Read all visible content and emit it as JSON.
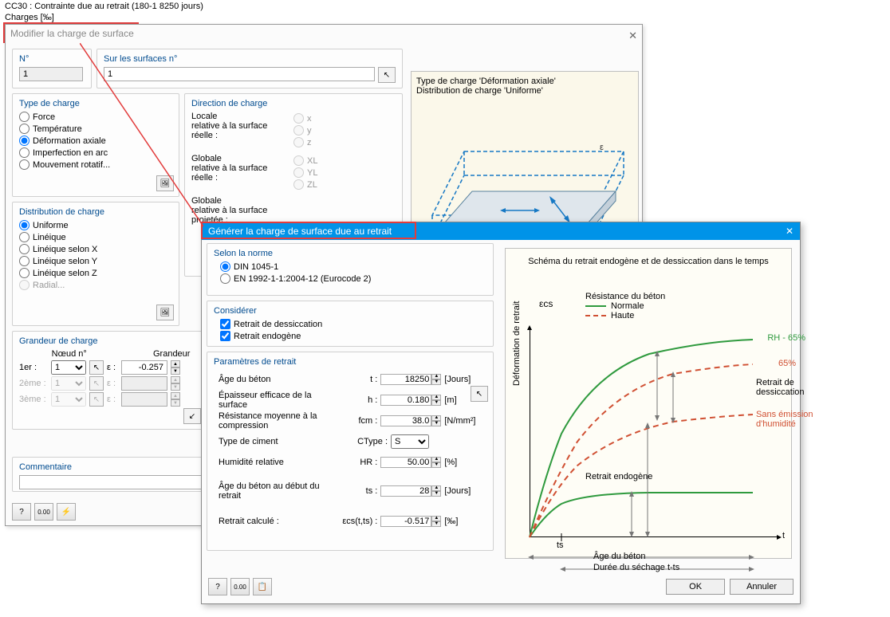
{
  "header": {
    "line1": "CC30 : Contrainte due au retrait (180-1 8250 jours)",
    "line2": "Charges [‰]"
  },
  "main_dialog": {
    "title": "Modifier la charge de surface",
    "close_icon": "✕",
    "no_label": "N°",
    "no_value": "1",
    "surf_label": "Sur les surfaces n°",
    "surf_value": "1"
  },
  "type_charge": {
    "title": "Type de charge",
    "options": [
      "Force",
      "Température",
      "Déformation axiale",
      "Imperfection en arc",
      "Mouvement rotatif..."
    ],
    "selected": "Déformation axiale"
  },
  "direction": {
    "title": "Direction de charge",
    "local_label": "Locale\nrelative à la surface\nréelle :",
    "local_opts": [
      "x",
      "y",
      "z"
    ],
    "global_real_label": "Globale\nrelative à la surface\nréelle :",
    "global_real_opts": [
      "XL",
      "YL",
      "ZL"
    ],
    "global_proj_label": "Globale\nrelative à la surface\nprojetée :"
  },
  "distribution": {
    "title": "Distribution de charge",
    "options": [
      "Uniforme",
      "Linéique",
      "Linéique selon X",
      "Linéique selon Y",
      "Linéique selon Z",
      "Radial..."
    ],
    "selected": "Uniforme"
  },
  "grandeur": {
    "title": "Grandeur de charge",
    "node_label": "Nœud n°",
    "mag_label": "Grandeur",
    "rows": [
      {
        "label": "1er :",
        "node": "1",
        "value": "-0.257"
      },
      {
        "label": "2ème :",
        "node": "1",
        "value": ""
      },
      {
        "label": "3ème :",
        "node": "1",
        "value": ""
      }
    ],
    "eps_symbol": "ε :"
  },
  "comment": {
    "title": "Commentaire",
    "value": ""
  },
  "preview": {
    "line1": "Type de charge 'Déformation axiale'",
    "line2": "Distribution de charge 'Uniforme'",
    "eps": "ε",
    "slab_border": "#1678c4",
    "dash_border": "#1678c4",
    "face_color": "#dfe6ec"
  },
  "sub_dialog": {
    "title": "Générer la charge de surface due au retrait",
    "norme": {
      "title": "Selon la norme",
      "opts": [
        "DIN 1045-1",
        "EN 1992-1-1:2004-12 (Eurocode 2)"
      ],
      "selected": "DIN 1045-1"
    },
    "consider": {
      "title": "Considérer",
      "opts": [
        "Retrait de dessiccation",
        "Retrait endogène"
      ],
      "checked": [
        true,
        true
      ]
    },
    "params": {
      "title": "Paramètres de retrait",
      "rows": [
        {
          "label": "Âge du béton",
          "sym": "t :",
          "value": "18250",
          "unit": "[Jours]"
        },
        {
          "label": "Épaisseur efficace de la surface",
          "sym": "h :",
          "value": "0.180",
          "unit": "[m]"
        },
        {
          "label": "Résistance moyenne à la compression",
          "sym": "fcm :",
          "value": "38.0",
          "unit": "[N/mm²]"
        },
        {
          "label": "Type de ciment",
          "sym": "CType :",
          "value": "S",
          "unit": ""
        },
        {
          "label": "Humidité relative",
          "sym": "HR :",
          "value": "50.00",
          "unit": "[%]"
        },
        {
          "label": "Âge du béton au début du retrait",
          "sym": "ts :",
          "value": "28",
          "unit": "[Jours]"
        },
        {
          "label": "Retrait calculé :",
          "sym": "εcs(t,ts) :",
          "value": "-0.517",
          "unit": "[‰]"
        }
      ]
    },
    "chart": {
      "caption": "Schéma du retrait endogène et de dessiccation dans le temps",
      "legend_title": "Résistance du béton",
      "legend_items": [
        {
          "label": "Normale",
          "color": "#2f9a3e",
          "dash": "0"
        },
        {
          "label": "Haute",
          "color": "#d05033",
          "dash": "6,4"
        }
      ],
      "annotations": {
        "rh65": "RH - 65%",
        "p65": "65%",
        "dessic": "Retrait de dessiccation",
        "sans_hum": "Sans émission d'humidité",
        "endo": "Retrait endogène",
        "ylabel": "Déformation de retrait",
        "ylabel_sym": "εcs",
        "xlabel": "t",
        "ts": "ts",
        "xcap1": "Âge du béton",
        "xcap2": "Durée du séchage t-ts"
      },
      "curves_colors": {
        "green": "#2f9a3e",
        "red": "#d05033"
      }
    },
    "buttons": {
      "ok": "OK",
      "cancel": "Annuler"
    }
  },
  "highlight_color": "#e23c3c"
}
